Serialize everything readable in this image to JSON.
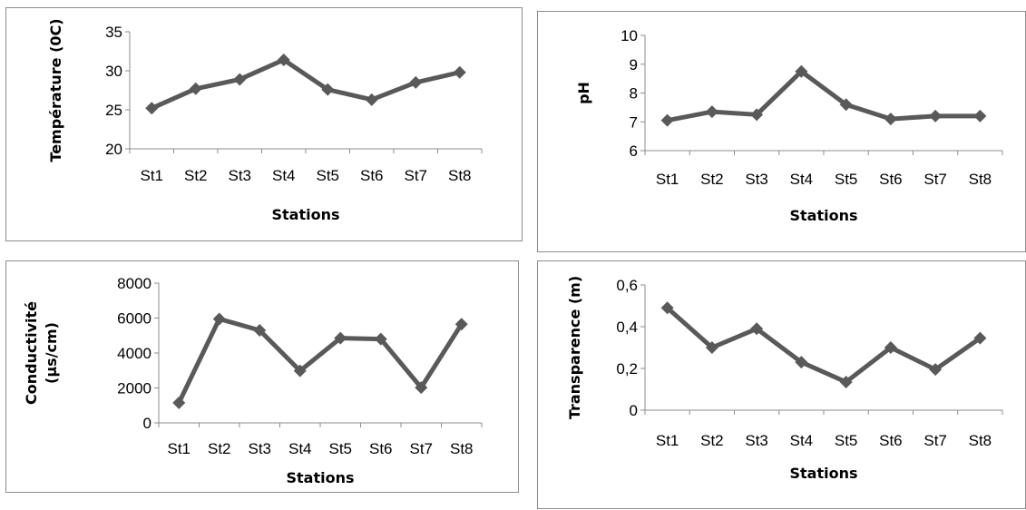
{
  "chart_data": [
    {
      "type": "line",
      "categories": [
        "St1",
        "St2",
        "St3",
        "St4",
        "St5",
        "St6",
        "St7",
        "St8"
      ],
      "series": [
        {
          "values": [
            25.2,
            27.7,
            28.9,
            31.4,
            27.6,
            26.3,
            28.5,
            29.8
          ]
        }
      ],
      "xlabel": "Stations",
      "ylabel": "Température (0C)",
      "ylim": [
        20,
        35
      ],
      "yticks": [
        20,
        25,
        30,
        35
      ],
      "ytick_labels": [
        "20",
        "25",
        "30",
        "35"
      ],
      "grid": false,
      "color": "#595959"
    },
    {
      "type": "line",
      "categories": [
        "St1",
        "St2",
        "St3",
        "St4",
        "St5",
        "St6",
        "St7",
        "St8"
      ],
      "series": [
        {
          "values": [
            7.05,
            7.35,
            7.25,
            8.75,
            7.6,
            7.1,
            7.2,
            7.2
          ]
        }
      ],
      "xlabel": "Stations",
      "ylabel": "pH",
      "ylim": [
        6,
        10
      ],
      "yticks": [
        6,
        7,
        8,
        9,
        10
      ],
      "ytick_labels": [
        "6",
        "7",
        "8",
        "9",
        "10"
      ],
      "grid": false,
      "color": "#595959"
    },
    {
      "type": "line",
      "categories": [
        "St1",
        "St2",
        "St3",
        "St4",
        "St5",
        "St6",
        "St7",
        "St8"
      ],
      "series": [
        {
          "values": [
            1150,
            5950,
            5300,
            2980,
            4850,
            4800,
            2020,
            5650
          ]
        }
      ],
      "xlabel": "Stations",
      "ylabel": [
        "Conductivité",
        "(µs/cm)"
      ],
      "ylim": [
        0,
        8000
      ],
      "yticks": [
        0,
        2000,
        4000,
        6000,
        8000
      ],
      "ytick_labels": [
        "0",
        "2000",
        "4000",
        "6000",
        "8000"
      ],
      "grid": false,
      "color": "#595959"
    },
    {
      "type": "line",
      "categories": [
        "St1",
        "St2",
        "St3",
        "St4",
        "St5",
        "St6",
        "St7",
        "St8"
      ],
      "series": [
        {
          "values": [
            0.49,
            0.3,
            0.39,
            0.23,
            0.135,
            0.3,
            0.195,
            0.345
          ]
        }
      ],
      "xlabel": "Stations",
      "ylabel": "Transparence (m)",
      "ylim": [
        0,
        0.6
      ],
      "yticks": [
        0,
        0.2,
        0.4,
        0.6
      ],
      "ytick_labels": [
        "0",
        "0,2",
        "0,4",
        "0,6"
      ],
      "grid": false,
      "color": "#595959"
    }
  ]
}
